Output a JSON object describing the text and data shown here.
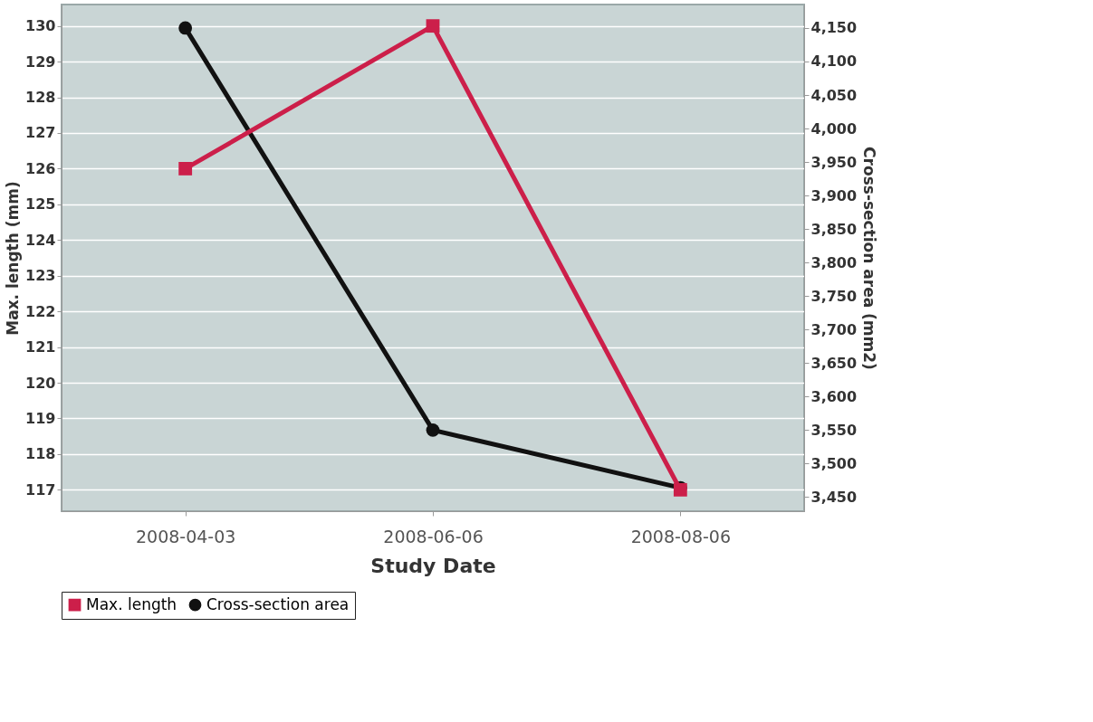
{
  "chart_data": {
    "type": "line",
    "xlabel": "Study Date",
    "ylabel": "Max. length (mm)",
    "y2label": "Cross-section area (mm2)",
    "categories": [
      "2008-04-03",
      "2008-06-06",
      "2008-08-06"
    ],
    "series": [
      {
        "name": "Max. length",
        "color": "#cc1f4a",
        "marker": "square",
        "values": [
          126,
          130,
          117
        ]
      },
      {
        "name": "Cross-section area",
        "color": "#111111",
        "marker": "circle",
        "axis": "y2",
        "values": [
          4150,
          3550,
          3464
        ]
      }
    ],
    "ylim": [
      116.4,
      130.6
    ],
    "yticks": [
      117,
      118,
      119,
      120,
      121,
      122,
      123,
      124,
      125,
      126,
      127,
      128,
      129,
      130
    ],
    "y2lim": [
      3429,
      4185
    ],
    "y2ticks": [
      {
        "value": 3450,
        "label": "3,450"
      },
      {
        "value": 3500,
        "label": "3,500"
      },
      {
        "value": 3550,
        "label": "3,550"
      },
      {
        "value": 3600,
        "label": "3,600"
      },
      {
        "value": 3650,
        "label": "3,650"
      },
      {
        "value": 3700,
        "label": "3,700"
      },
      {
        "value": 3750,
        "label": "3,750"
      },
      {
        "value": 3800,
        "label": "3,800"
      },
      {
        "value": 3850,
        "label": "3,850"
      },
      {
        "value": 3900,
        "label": "3,900"
      },
      {
        "value": 3950,
        "label": "3,950"
      },
      {
        "value": 4000,
        "label": "4,000"
      },
      {
        "value": 4050,
        "label": "4,050"
      },
      {
        "value": 4100,
        "label": "4,100"
      },
      {
        "value": 4150,
        "label": "4,150"
      }
    ],
    "grid": "y",
    "legend": "bottom",
    "line_style": "solid"
  }
}
